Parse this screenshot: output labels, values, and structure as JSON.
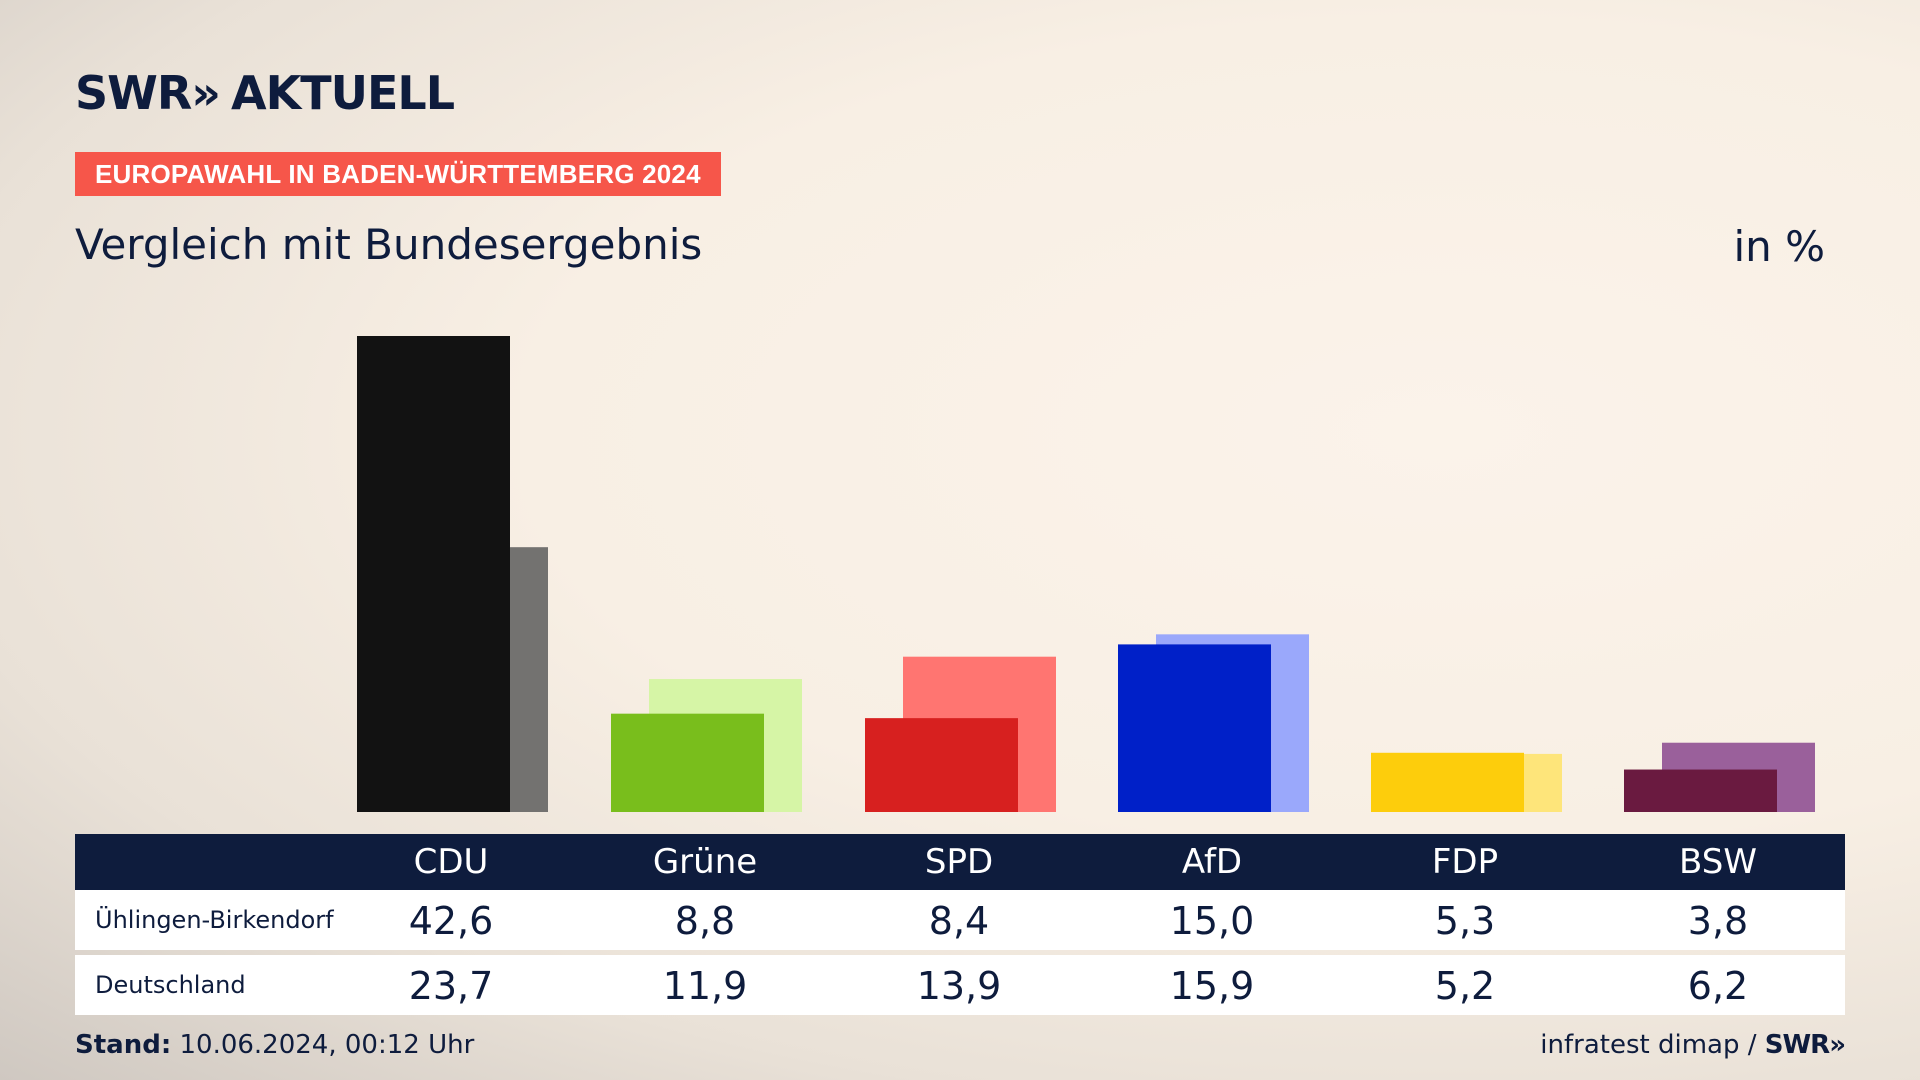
{
  "header": {
    "logo_text": "SWR",
    "logo_chevrons": "»",
    "logo_suffix": "AKTUELL",
    "tag": "EUROPAWAHL IN BADEN-WÜRTTEMBERG 2024",
    "title": "Vergleich mit Bundesergebnis",
    "unit": "in %"
  },
  "chart_data": {
    "type": "bar",
    "categories": [
      "CDU",
      "Grüne",
      "SPD",
      "AfD",
      "FDP",
      "BSW"
    ],
    "series": [
      {
        "name": "Ühlingen-Birkendorf",
        "values": [
          42.6,
          8.8,
          8.4,
          15.0,
          5.3,
          3.8
        ],
        "colors": [
          "#121212",
          "#79be1c",
          "#d7201f",
          "#0020c8",
          "#fdcd0c",
          "#6a1a40"
        ]
      },
      {
        "name": "Deutschland",
        "values": [
          23.7,
          11.9,
          13.9,
          15.9,
          5.2,
          6.2
        ],
        "colors": [
          "#737270",
          "#d6f5a6",
          "#ff7571",
          "#9aa8fb",
          "#fee57a",
          "#9a609b"
        ]
      }
    ],
    "ylim": [
      0,
      42.6
    ],
    "grid": false,
    "legend": "table-below"
  },
  "table": {
    "columns": [
      "CDU",
      "Grüne",
      "SPD",
      "AfD",
      "FDP",
      "BSW"
    ],
    "rows": [
      {
        "label": "Ühlingen-Birkendorf",
        "values": [
          "42,6",
          "8,8",
          "8,4",
          "15,0",
          "5,3",
          "3,8"
        ]
      },
      {
        "label": "Deutschland",
        "values": [
          "23,7",
          "11,9",
          "13,9",
          "15,9",
          "5,2",
          "6,2"
        ]
      }
    ]
  },
  "footer": {
    "stand_label": "Stand:",
    "stand_value": "10.06.2024, 00:12 Uhr",
    "source": "infratest dimap /",
    "source_logo": "SWR»"
  }
}
